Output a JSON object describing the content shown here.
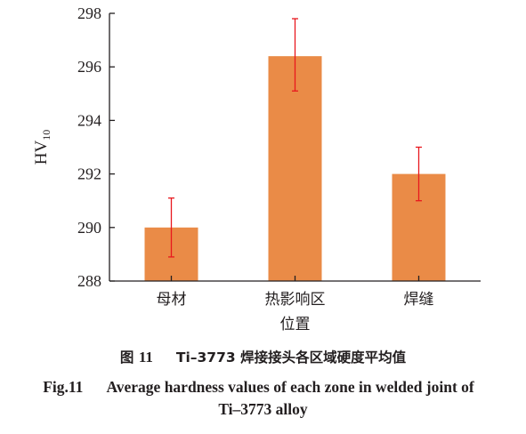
{
  "colors": {
    "bar": "#ea8b47",
    "error_bar": "#e8181e",
    "axis": "#231f20"
  },
  "chart_data": {
    "type": "bar",
    "categories": [
      "母材",
      "热影响区",
      "焊缝"
    ],
    "values": [
      290.0,
      296.4,
      292.0
    ],
    "errors": {
      "upper": [
        291.1,
        297.8,
        293.0
      ],
      "lower": [
        288.9,
        295.1,
        291.0
      ]
    },
    "xlabel": "位置",
    "ylabel": "HV",
    "ylabel_subscript": "10",
    "ylim": [
      288,
      298
    ],
    "yticks": [
      "288",
      "290",
      "292",
      "294",
      "296",
      "298"
    ],
    "ytick_values": [
      288,
      290,
      292,
      294,
      296,
      298
    ],
    "grid": false,
    "legend": "none"
  },
  "caption": {
    "cn_prefix": "图",
    "cn_number": "11",
    "cn_title": "Ti–3773 焊接接头各区域硬度平均值",
    "en_prefix": "Fig.11",
    "en_title_line1": "Average hardness values of each zone in welded joint of",
    "en_title_line2": "Ti–3773 alloy"
  }
}
